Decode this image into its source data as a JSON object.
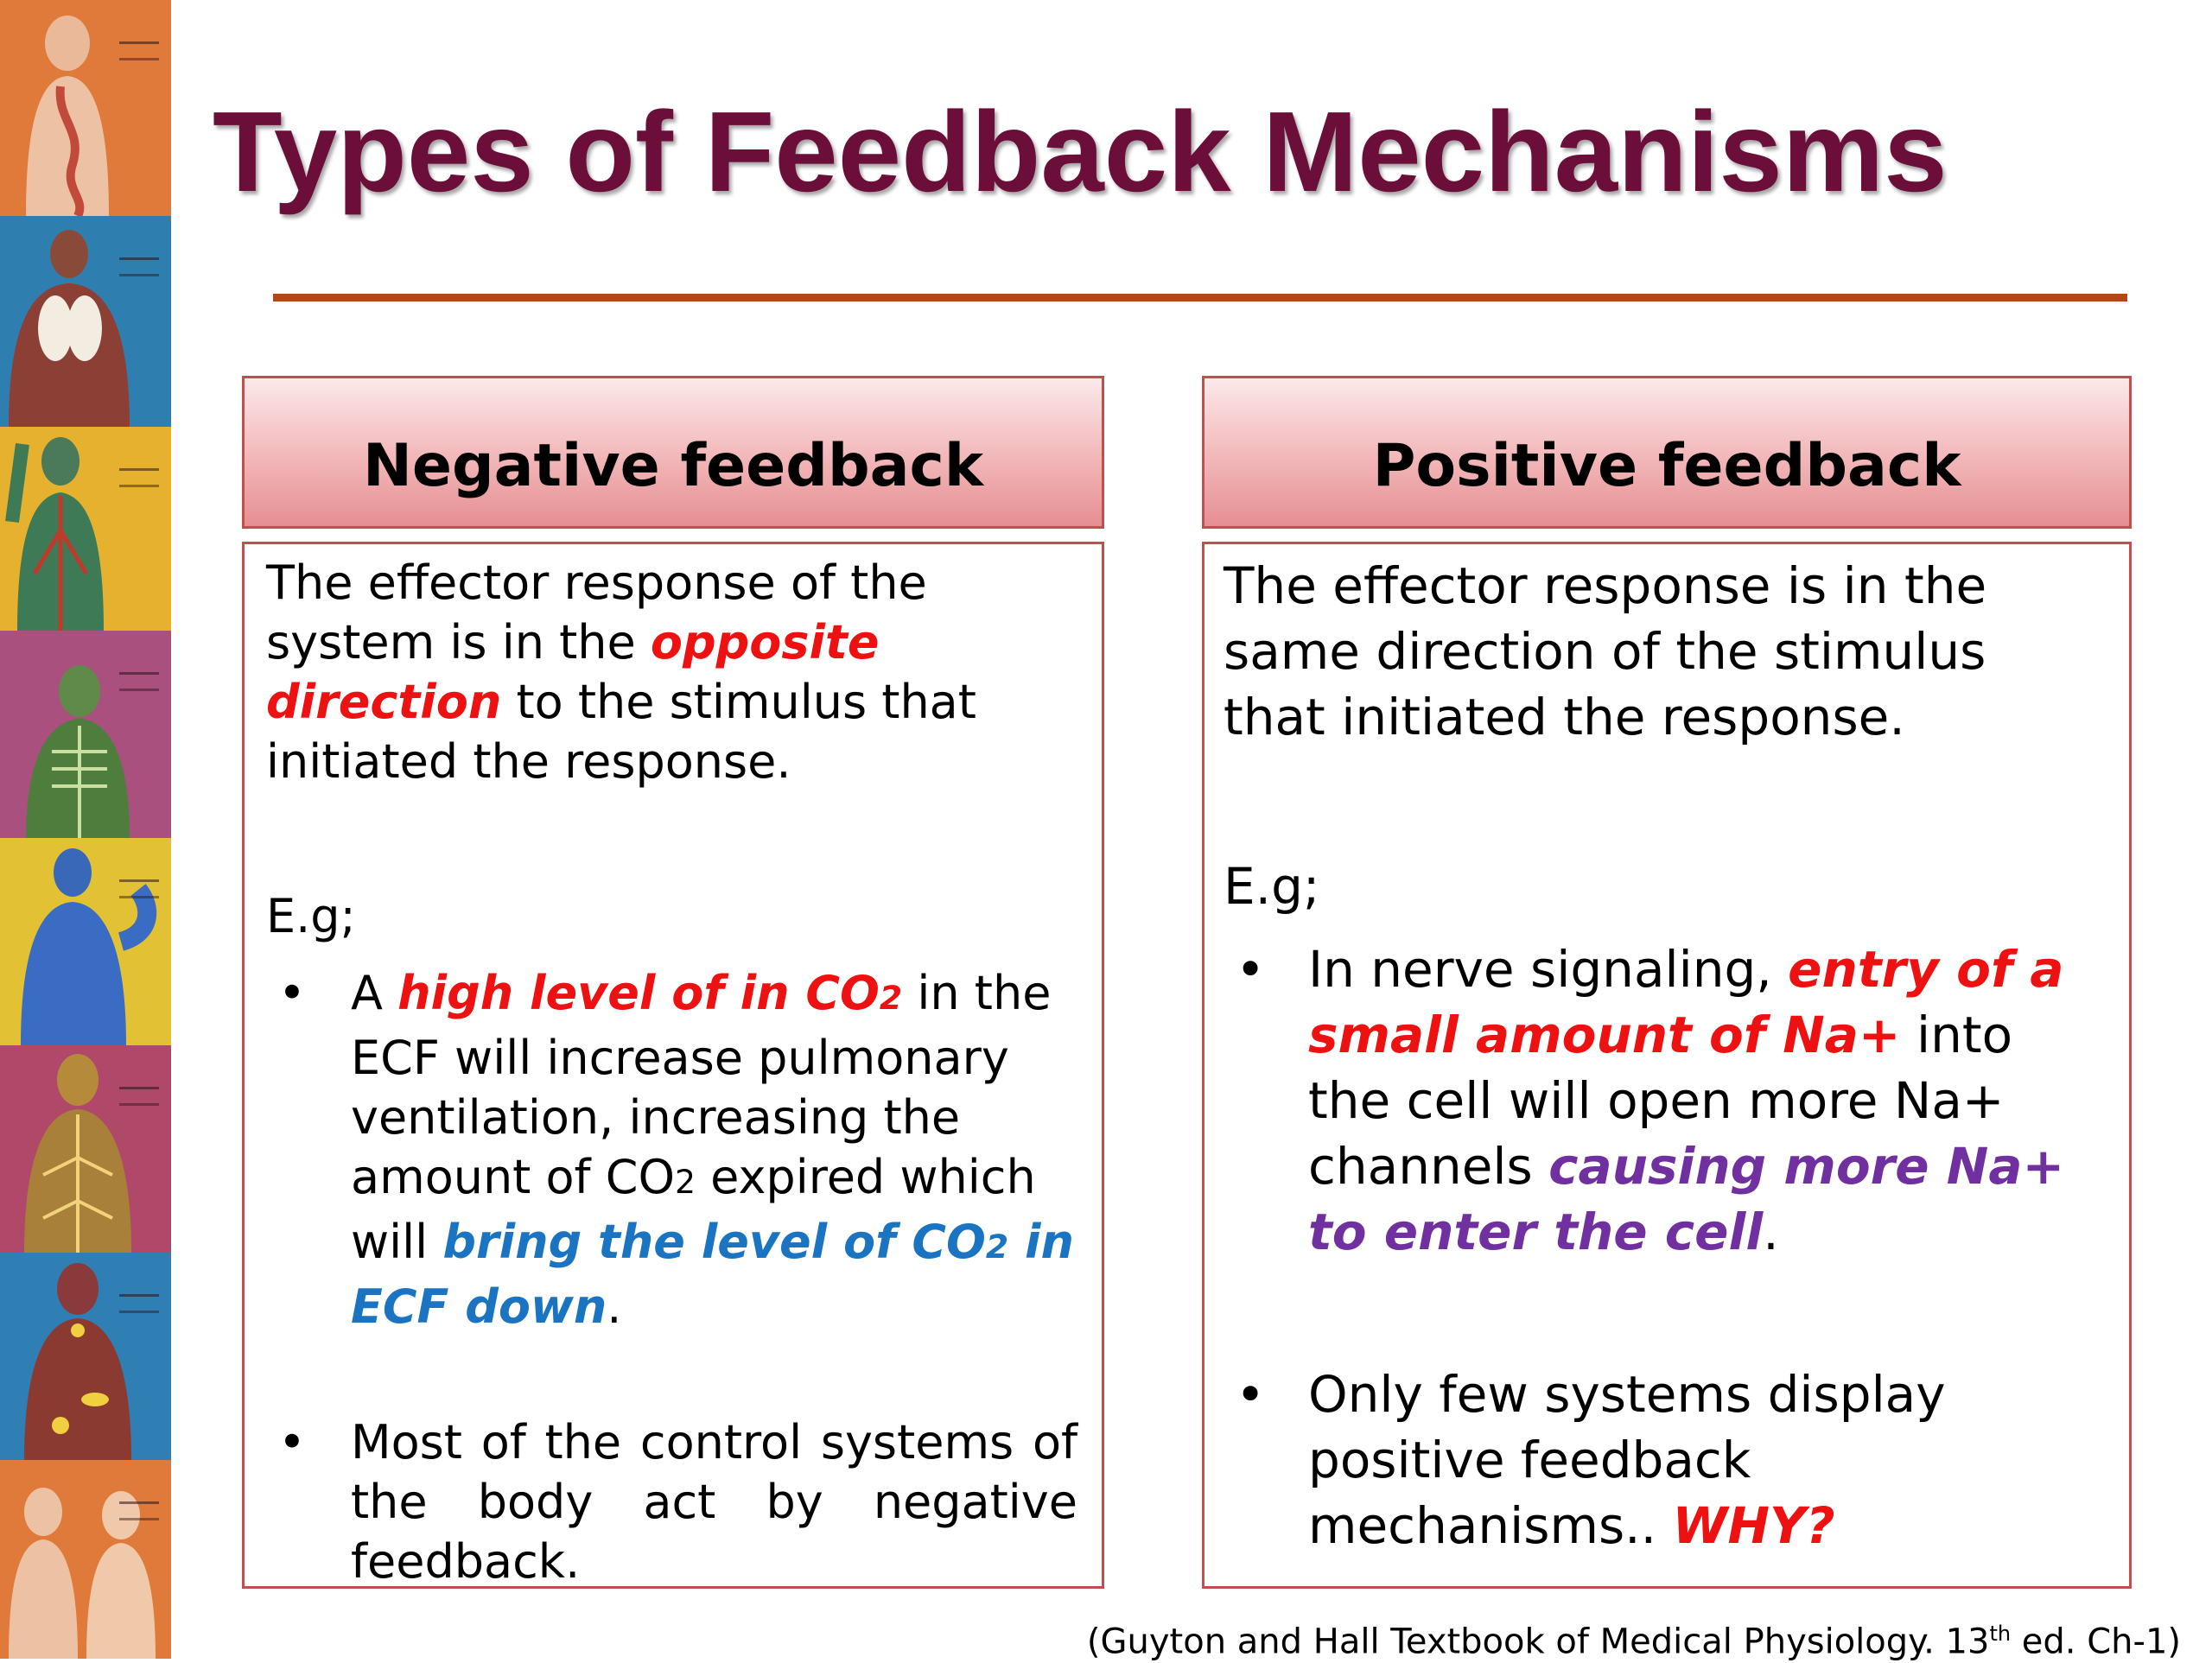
{
  "slide": {
    "title": "Types of Feedback Mechanisms",
    "negative": {
      "heading": "Negative feedback",
      "intro_1": "The effector response of the system is in the ",
      "intro_hl": "opposite direction",
      "intro_2": " to the stimulus that initiated the response.",
      "eg": "E.g;",
      "b1_a": "A ",
      "b1_hl": "high level of in CO",
      "b1_hl_sub": "2",
      "b1_b": " in the ECF will increase pulmonary ventilation, increasing the amount of CO",
      "b1_b_sub": "2",
      "b1_c": " expired which will ",
      "b1_blue_1": "bring the level of CO",
      "b1_blue_sub": "2",
      "b1_blue_2": " in ECF down",
      "b1_end": ".",
      "b2": "Most of the control systems of the body act by negative feedback."
    },
    "positive": {
      "heading": "Positive feedback",
      "intro": "The effector response is in the same direction of the stimulus that initiated the response.",
      "eg": "E.g;",
      "b1_a": "In nerve signaling, ",
      "b1_red": "entry of a small amount of Na+",
      "b1_b": " into the cell will open more Na+ channels ",
      "b1_purple": "causing more Na+ to enter the cell",
      "b1_end": ".",
      "b2_a": "Only few systems display positive feedback mechanisms.. ",
      "b2_red": "WHY?"
    },
    "bullet": "•",
    "source_a": "(Guyton and Hall Textbook of Medical Physiology. 13",
    "source_sup": "th",
    "source_b": " ed. Ch-1)"
  }
}
